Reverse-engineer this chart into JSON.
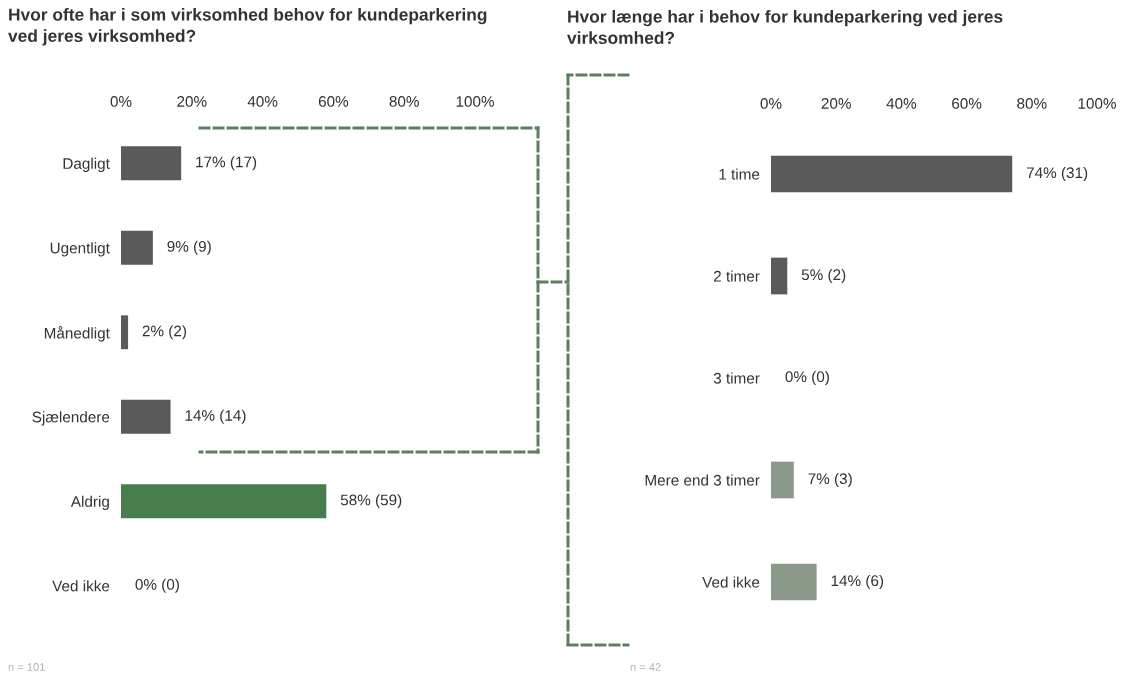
{
  "chart_data": [
    {
      "type": "bar",
      "orientation": "horizontal",
      "title": "Hvor ofte har i som virksomhed behov for kundeparkering\nved jeres virksomhed?",
      "categories": [
        "Dagligt",
        "Ugentligt",
        "Månedligt",
        "Sjælendere",
        "Aldrig",
        "Ved ikke"
      ],
      "values": [
        17,
        9,
        2,
        14,
        58,
        0
      ],
      "value_labels": [
        "17% (17)",
        "9% (9)",
        "2% (2)",
        "14% (14)",
        "58% (59)",
        "0% (0)"
      ],
      "colors": [
        "#5a5a5a",
        "#5a5a5a",
        "#5a5a5a",
        "#5a5a5a",
        "#4a7d4c",
        "#5a5a5a"
      ],
      "xlim": [
        0,
        100
      ],
      "xticks": [
        {
          "value": 0,
          "label": "0%"
        },
        {
          "value": 20,
          "label": "20%"
        },
        {
          "value": 40,
          "label": "40%"
        },
        {
          "value": 60,
          "label": "60%"
        },
        {
          "value": 80,
          "label": "80%"
        },
        {
          "value": 100,
          "label": "100%"
        }
      ],
      "annotations": [
        "n = 101"
      ]
    },
    {
      "type": "bar",
      "orientation": "horizontal",
      "title": "Hvor længe har i behov for kundeparkering ved jeres\nvirksomhed?",
      "categories": [
        "1 time",
        "2 timer",
        "3 timer",
        "Mere end 3 timer",
        "Ved ikke"
      ],
      "values": [
        74,
        5,
        0,
        7,
        14
      ],
      "value_labels": [
        "74% (31)",
        "5% (2)",
        "0% (0)",
        "7% (3)",
        "14% (6)"
      ],
      "colors": [
        "#5a5a5a",
        "#5a5a5a",
        "#5a5a5a",
        "#8c9a8c",
        "#8c9a8c"
      ],
      "xlim": [
        0,
        100
      ],
      "xticks": [
        {
          "value": 0,
          "label": "0%"
        },
        {
          "value": 20,
          "label": "20%"
        },
        {
          "value": 40,
          "label": "40%"
        },
        {
          "value": 60,
          "label": "60%"
        },
        {
          "value": 80,
          "label": "80%"
        },
        {
          "value": 100,
          "label": "100%"
        }
      ],
      "annotations": [
        "n = 42"
      ]
    }
  ]
}
